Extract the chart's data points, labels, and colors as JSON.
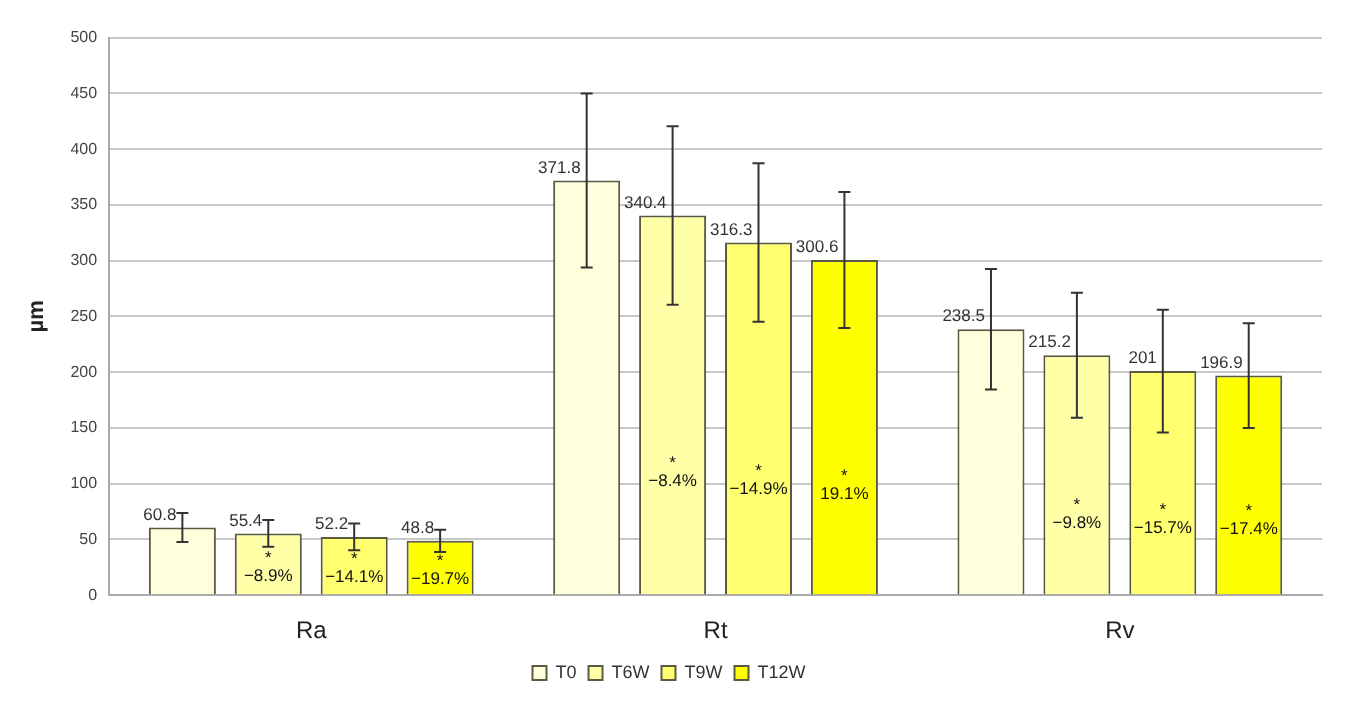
{
  "chart_data": {
    "type": "bar",
    "ylabel": "µm",
    "categories": [
      "Ra",
      "Rt",
      "Rv"
    ],
    "series": [
      {
        "name": "T0",
        "color": "#ffffdc",
        "values": [
          60.8,
          371.8,
          238.5
        ],
        "errors": [
          13,
          78,
          54
        ]
      },
      {
        "name": "T6W",
        "color": "#ffffa8",
        "values": [
          55.4,
          340.4,
          215.2
        ],
        "errors": [
          12,
          80,
          56
        ]
      },
      {
        "name": "T9W",
        "color": "#ffff70",
        "values": [
          52.2,
          316.3,
          201
        ],
        "errors": [
          12,
          71,
          55
        ]
      },
      {
        "name": "T12W",
        "color": "#ffff00",
        "values": [
          48.8,
          300.6,
          196.9
        ],
        "errors": [
          10,
          61,
          47
        ]
      }
    ],
    "ylim": [
      0,
      500
    ],
    "yticks": [
      0,
      50,
      100,
      150,
      200,
      250,
      300,
      350,
      400,
      450,
      500
    ],
    "grid": "y",
    "legend": "bottom",
    "data_labels": true,
    "annotations": [
      "*",
      "−8.9%",
      "*",
      "−14.1%",
      "*",
      "−19.7%",
      "*",
      "−8.4%",
      "*",
      "−14.9%",
      "*",
      "19.1%",
      "*",
      "−9.8%",
      "*",
      "−15.7%",
      "*",
      "−17.4%"
    ]
  }
}
